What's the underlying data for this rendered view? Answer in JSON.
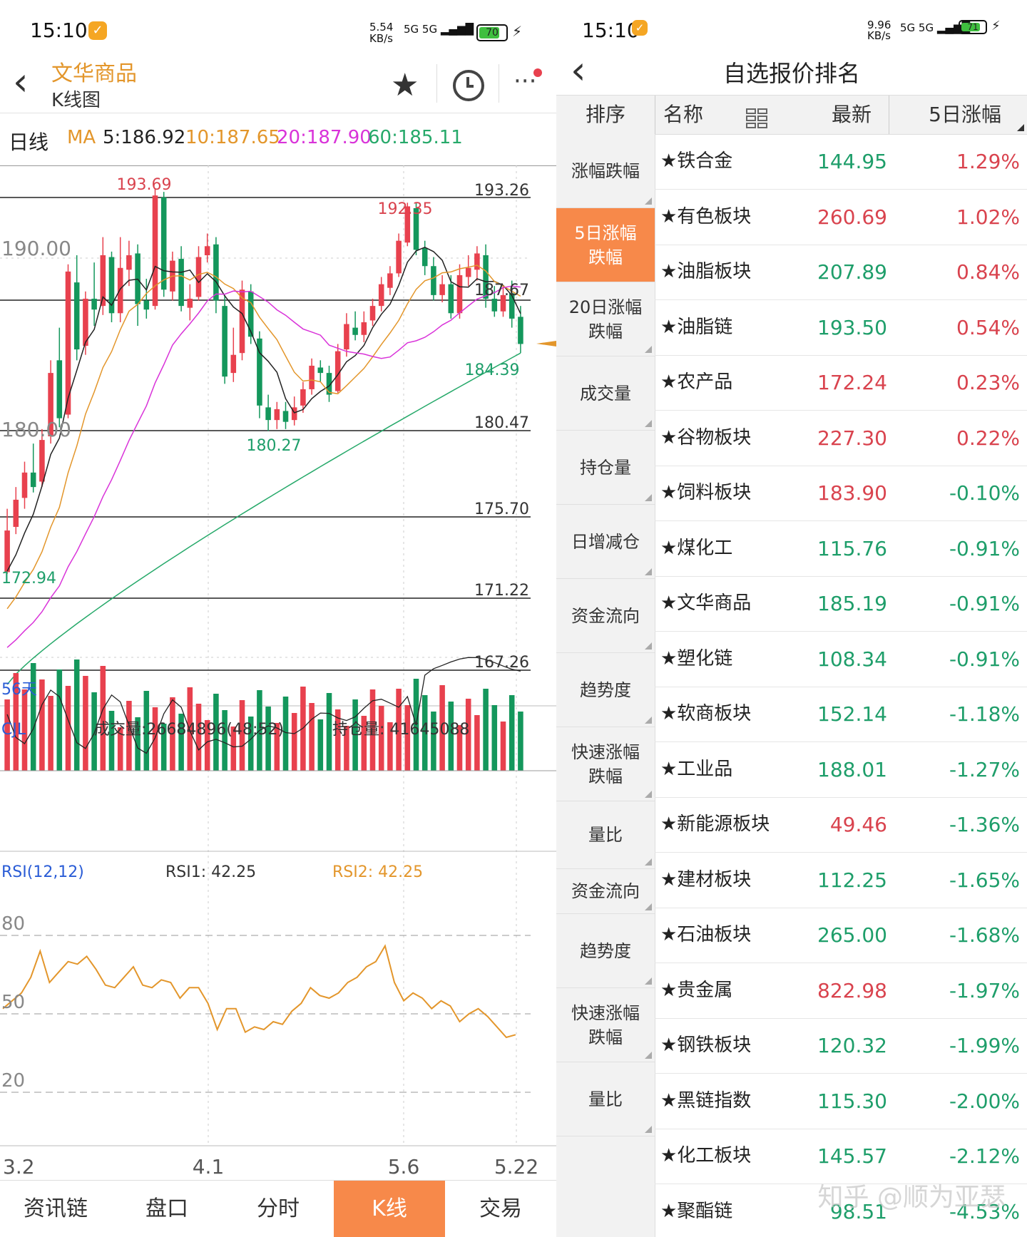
{
  "status_left": {
    "time": "15:10",
    "net": "5.54 KB/s",
    "signal": "5G 5G",
    "battery": "70"
  },
  "status_right": {
    "time": "15:10",
    "net": "9.96 KB/s",
    "signal": "5G 5G",
    "battery": "71"
  },
  "kline": {
    "title": "文华商品",
    "subtitle": "K线图",
    "period_label": "日线",
    "ma_label": "MA",
    "ma5": "5:186.92",
    "ma10": "10:187.65",
    "ma20": "20:187.90",
    "ma60": "60:185.11",
    "colors": {
      "ma5": "#222222",
      "ma10": "#e3962b",
      "ma20": "#d933d9",
      "ma60": "#26a96a",
      "up": "#e8414e",
      "down": "#14975c"
    },
    "price_axis": [
      "190.00",
      "180.00"
    ],
    "level_lines": [
      "193.26",
      "187.67",
      "180.47",
      "175.70",
      "171.22",
      "167.26"
    ],
    "annotations": {
      "high1": "193.69",
      "high2": "192.35",
      "low1": "180.27",
      "low2": "172.94",
      "current": "184.39"
    },
    "days_label": "56天",
    "dates": [
      "3.2",
      "4.1",
      "5.6",
      "5.22"
    ]
  },
  "volume": {
    "label": "CJL",
    "volume_text": "成交量:26684896(48:52)",
    "oi_text": "持仓量: 41645088"
  },
  "rsi": {
    "label": "RSI(12,12)",
    "rsi1": "RSI1: 42.25",
    "rsi2": "RSI2: 42.25",
    "levels": [
      "80",
      "50",
      "20"
    ]
  },
  "bottom_tabs": [
    "资讯链",
    "盘口",
    "分时",
    "K线",
    "交易"
  ],
  "quote_panel": {
    "title": "自选报价排名",
    "col_sort": "排序",
    "col_name": "名称",
    "col_last": "最新",
    "col_change": "5日涨幅",
    "sort_items": [
      "涨幅跌幅",
      "5日涨幅跌幅",
      "20日涨幅跌幅",
      "成交量",
      "持仓量",
      "日增减仓",
      "资金流向",
      "趋势度",
      "快速涨幅跌幅",
      "量比",
      "资金流向",
      "趋势度",
      "快速涨幅跌幅",
      "量比"
    ],
    "rows": [
      {
        "name": "★铁合金",
        "price": "144.95",
        "change": "1.29%",
        "pc": "dn",
        "cc": "up"
      },
      {
        "name": "★有色板块",
        "price": "260.69",
        "change": "1.02%",
        "pc": "up",
        "cc": "up"
      },
      {
        "name": "★油脂板块",
        "price": "207.89",
        "change": "0.84%",
        "pc": "dn",
        "cc": "up"
      },
      {
        "name": "★油脂链",
        "price": "193.50",
        "change": "0.54%",
        "pc": "dn",
        "cc": "up"
      },
      {
        "name": "★农产品",
        "price": "172.24",
        "change": "0.23%",
        "pc": "up",
        "cc": "up"
      },
      {
        "name": "★谷物板块",
        "price": "227.30",
        "change": "0.22%",
        "pc": "up",
        "cc": "up"
      },
      {
        "name": "★饲料板块",
        "price": "183.90",
        "change": "-0.10%",
        "pc": "up",
        "cc": "dn"
      },
      {
        "name": "★煤化工",
        "price": "115.76",
        "change": "-0.91%",
        "pc": "dn",
        "cc": "dn"
      },
      {
        "name": "★文华商品",
        "price": "185.19",
        "change": "-0.91%",
        "pc": "dn",
        "cc": "dn"
      },
      {
        "name": "★塑化链",
        "price": "108.34",
        "change": "-0.91%",
        "pc": "dn",
        "cc": "dn"
      },
      {
        "name": "★软商板块",
        "price": "152.14",
        "change": "-1.18%",
        "pc": "dn",
        "cc": "dn"
      },
      {
        "name": "★工业品",
        "price": "188.01",
        "change": "-1.27%",
        "pc": "dn",
        "cc": "dn"
      },
      {
        "name": "★新能源板块",
        "price": "49.46",
        "change": "-1.36%",
        "pc": "up",
        "cc": "dn"
      },
      {
        "name": "★建材板块",
        "price": "112.25",
        "change": "-1.65%",
        "pc": "dn",
        "cc": "dn"
      },
      {
        "name": "★石油板块",
        "price": "265.00",
        "change": "-1.68%",
        "pc": "dn",
        "cc": "dn"
      },
      {
        "name": "★贵金属",
        "price": "822.98",
        "change": "-1.97%",
        "pc": "up",
        "cc": "dn"
      },
      {
        "name": "★钢铁板块",
        "price": "120.32",
        "change": "-1.99%",
        "pc": "dn",
        "cc": "dn"
      },
      {
        "name": "★黑链指数",
        "price": "115.30",
        "change": "-2.00%",
        "pc": "dn",
        "cc": "dn"
      },
      {
        "name": "★化工板块",
        "price": "145.57",
        "change": "-2.12%",
        "pc": "dn",
        "cc": "dn"
      },
      {
        "name": "★聚酯链",
        "price": "98.51",
        "change": "-4.53%",
        "pc": "dn",
        "cc": "dn"
      }
    ]
  },
  "watermark": "知乎 @顺为亚瑟"
}
